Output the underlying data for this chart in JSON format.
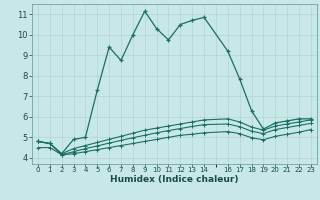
{
  "title": "",
  "xlabel": "Humidex (Indice chaleur)",
  "bg_color": "#c8e8e8",
  "grid_color": "#b0d0d0",
  "line_color": "#1a6e64",
  "xlim": [
    -0.5,
    23.5
  ],
  "ylim": [
    3.7,
    11.5
  ],
  "xticks": [
    0,
    1,
    2,
    3,
    4,
    5,
    6,
    7,
    8,
    9,
    10,
    11,
    12,
    13,
    14,
    16,
    17,
    18,
    19,
    20,
    21,
    22,
    23
  ],
  "yticks": [
    4,
    5,
    6,
    7,
    8,
    9,
    10,
    11
  ],
  "main_x": [
    0,
    1,
    2,
    3,
    4,
    5,
    6,
    7,
    8,
    9,
    10,
    11,
    12,
    13,
    14,
    16,
    17,
    18,
    19,
    20,
    21,
    22,
    23
  ],
  "main_y": [
    4.8,
    4.7,
    4.2,
    4.9,
    5.0,
    7.3,
    9.4,
    8.75,
    10.0,
    11.15,
    10.3,
    9.75,
    10.5,
    10.7,
    10.85,
    9.2,
    7.85,
    6.3,
    5.4,
    5.7,
    5.8,
    5.9,
    5.9
  ],
  "line2_x": [
    0,
    1,
    2,
    3,
    4,
    5,
    6,
    7,
    8,
    9,
    10,
    11,
    12,
    13,
    14,
    16,
    17,
    18,
    19,
    20,
    21,
    22,
    23
  ],
  "line2_y": [
    4.8,
    4.7,
    4.2,
    4.45,
    4.6,
    4.75,
    4.9,
    5.05,
    5.2,
    5.35,
    5.45,
    5.55,
    5.65,
    5.75,
    5.85,
    5.9,
    5.75,
    5.5,
    5.35,
    5.55,
    5.65,
    5.75,
    5.85
  ],
  "line3_x": [
    0,
    1,
    2,
    3,
    4,
    5,
    6,
    7,
    8,
    9,
    10,
    11,
    12,
    13,
    14,
    16,
    17,
    18,
    19,
    20,
    21,
    22,
    23
  ],
  "line3_y": [
    4.8,
    4.7,
    4.15,
    4.3,
    4.45,
    4.58,
    4.72,
    4.85,
    4.98,
    5.1,
    5.22,
    5.33,
    5.43,
    5.53,
    5.62,
    5.65,
    5.52,
    5.3,
    5.18,
    5.38,
    5.48,
    5.58,
    5.68
  ],
  "line4_x": [
    0,
    1,
    2,
    3,
    4,
    5,
    6,
    7,
    8,
    9,
    10,
    11,
    12,
    13,
    14,
    16,
    17,
    18,
    19,
    20,
    21,
    22,
    23
  ],
  "line4_y": [
    4.5,
    4.5,
    4.15,
    4.2,
    4.3,
    4.4,
    4.5,
    4.6,
    4.7,
    4.8,
    4.9,
    5.0,
    5.1,
    5.15,
    5.22,
    5.28,
    5.18,
    4.98,
    4.88,
    5.05,
    5.15,
    5.25,
    5.38
  ]
}
